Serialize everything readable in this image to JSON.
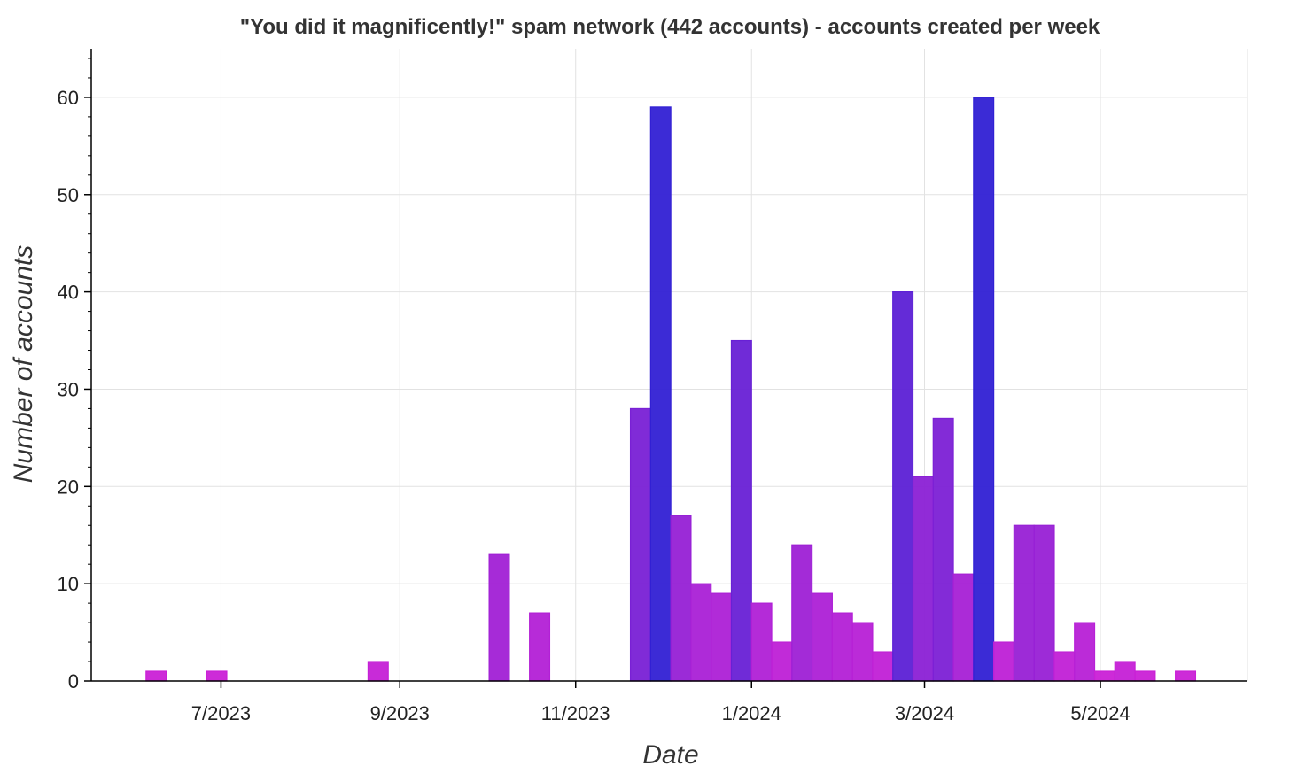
{
  "chart_data": {
    "type": "bar",
    "title": "\"You did it magnificently!\" spam network (442 accounts) - accounts created per week",
    "xlabel": "Date",
    "ylabel": "Number of accounts",
    "ylim": [
      0,
      65
    ],
    "yticks": [
      0,
      10,
      20,
      30,
      40,
      50,
      60
    ],
    "xlim": [
      "2023-05-17",
      "2024-06-21"
    ],
    "xticks": [
      {
        "date": "2023-07-01",
        "label": "7/2023"
      },
      {
        "date": "2023-09-01",
        "label": "9/2023"
      },
      {
        "date": "2023-11-01",
        "label": "11/2023"
      },
      {
        "date": "2024-01-01",
        "label": "1/2024"
      },
      {
        "date": "2024-03-01",
        "label": "3/2024"
      },
      {
        "date": "2024-05-01",
        "label": "5/2024"
      }
    ],
    "grid": true,
    "bin": "week",
    "color_low": "#d020d6",
    "color_high": "#3020d4",
    "bars": [
      {
        "week": "2023-06-05",
        "value": 1
      },
      {
        "week": "2023-06-26",
        "value": 1
      },
      {
        "week": "2023-08-21",
        "value": 2
      },
      {
        "week": "2023-10-02",
        "value": 13
      },
      {
        "week": "2023-10-16",
        "value": 7
      },
      {
        "week": "2023-11-20",
        "value": 28
      },
      {
        "week": "2023-11-27",
        "value": 59
      },
      {
        "week": "2023-12-04",
        "value": 17
      },
      {
        "week": "2023-12-11",
        "value": 10
      },
      {
        "week": "2023-12-18",
        "value": 9
      },
      {
        "week": "2023-12-25",
        "value": 35
      },
      {
        "week": "2024-01-01",
        "value": 8
      },
      {
        "week": "2024-01-08",
        "value": 4
      },
      {
        "week": "2024-01-15",
        "value": 14
      },
      {
        "week": "2024-01-22",
        "value": 9
      },
      {
        "week": "2024-01-29",
        "value": 7
      },
      {
        "week": "2024-02-05",
        "value": 6
      },
      {
        "week": "2024-02-12",
        "value": 3
      },
      {
        "week": "2024-02-19",
        "value": 40
      },
      {
        "week": "2024-02-26",
        "value": 21
      },
      {
        "week": "2024-03-04",
        "value": 27
      },
      {
        "week": "2024-03-11",
        "value": 11
      },
      {
        "week": "2024-03-18",
        "value": 60
      },
      {
        "week": "2024-03-25",
        "value": 4
      },
      {
        "week": "2024-04-01",
        "value": 16
      },
      {
        "week": "2024-04-08",
        "value": 16
      },
      {
        "week": "2024-04-15",
        "value": 3
      },
      {
        "week": "2024-04-22",
        "value": 6
      },
      {
        "week": "2024-04-29",
        "value": 1
      },
      {
        "week": "2024-05-06",
        "value": 2
      },
      {
        "week": "2024-05-13",
        "value": 1
      },
      {
        "week": "2024-05-27",
        "value": 1
      }
    ]
  }
}
